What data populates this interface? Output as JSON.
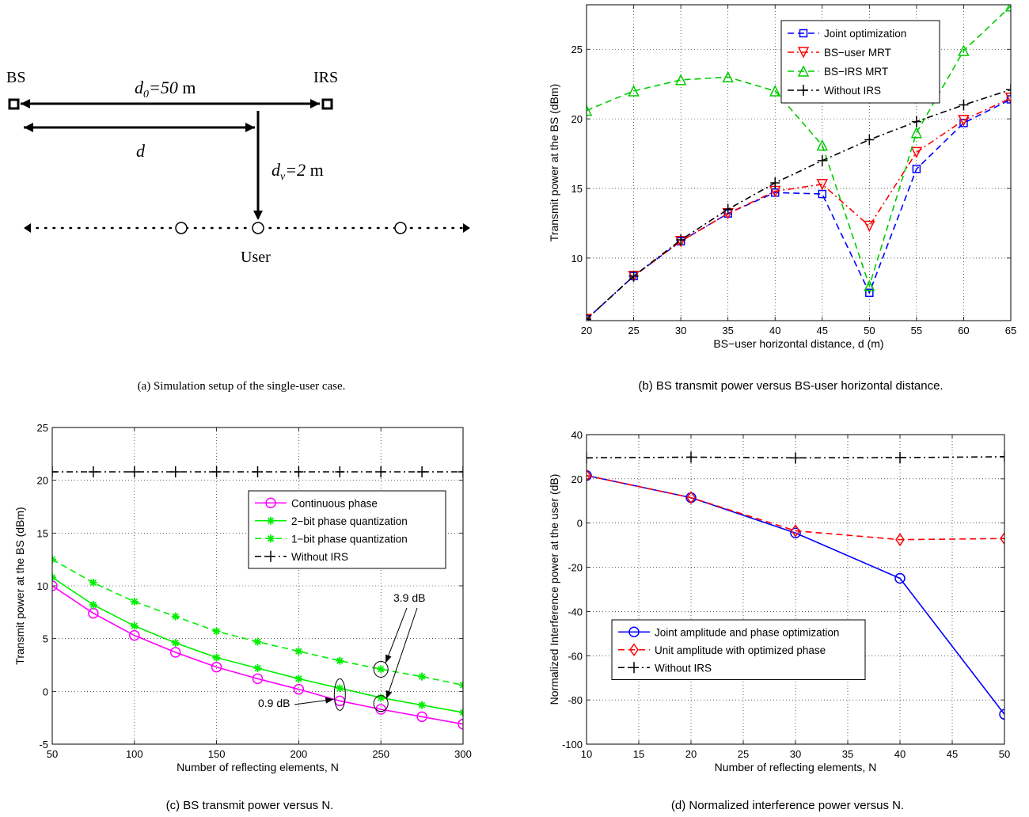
{
  "setup": {
    "bs_label": "BS",
    "irs_label": "IRS",
    "d0_label": "d",
    "d0_sub": "0",
    "d0_value": "=50",
    "d0_unit": " m",
    "d_label": "d",
    "dv_label": "d",
    "dv_sub": "v",
    "dv_value": "=2",
    "dv_unit": " m",
    "user_label": "User",
    "caption": "(a) Simulation setup of the single-user case."
  },
  "chart_data": [
    {
      "id": "b",
      "type": "line",
      "caption": "(b) BS transmit power versus BS-user horizontal distance.",
      "xlabel": "BS−user horizontal distance, d (m)",
      "ylabel": "Transmit power at the BS (dBm)",
      "xlim": [
        20,
        65
      ],
      "ylim": [
        5.5,
        28.2
      ],
      "xticks": [
        20,
        25,
        30,
        35,
        40,
        45,
        50,
        55,
        60,
        65
      ],
      "yticks": [
        10,
        15,
        20,
        25
      ],
      "grid": true,
      "legend": "top-right",
      "x": [
        20,
        25,
        30,
        35,
        40,
        45,
        50,
        55,
        60,
        65
      ],
      "series": [
        {
          "name": "Joint optimization",
          "color": "#0000ff",
          "dash": "8,5",
          "marker": "square",
          "values": [
            5.6,
            8.7,
            11.2,
            13.2,
            14.7,
            14.6,
            7.5,
            16.4,
            19.7,
            21.4
          ]
        },
        {
          "name": "BS−user MRT",
          "color": "#ff0000",
          "dash": "8,4,2,4",
          "marker": "tri-down",
          "values": [
            5.6,
            8.7,
            11.2,
            13.2,
            14.8,
            15.3,
            12.3,
            17.6,
            19.9,
            21.5
          ]
        },
        {
          "name": "BS−IRS MRT",
          "color": "#00cc00",
          "dash": "8,5",
          "marker": "tri-up",
          "values": [
            20.6,
            22.0,
            22.8,
            23.0,
            22.0,
            18.1,
            8.0,
            19.0,
            24.9,
            28.1
          ]
        },
        {
          "name": "Without IRS",
          "color": "#000000",
          "dash": "8,4,2,4",
          "marker": "plus",
          "values": [
            5.6,
            8.7,
            11.3,
            13.5,
            15.4,
            17.0,
            18.5,
            19.8,
            21.0,
            22.1
          ]
        }
      ]
    },
    {
      "id": "c",
      "type": "line",
      "caption": "(c) BS transmit power versus N.",
      "xlabel": "Number of reflecting elements, N",
      "ylabel": "Transmit power at the BS (dBm)",
      "xlim": [
        50,
        300
      ],
      "ylim": [
        -5,
        25
      ],
      "xticks": [
        50,
        100,
        150,
        200,
        250,
        300
      ],
      "yticks": [
        -5,
        0,
        5,
        10,
        15,
        20,
        25
      ],
      "grid": true,
      "legend": "middle-right",
      "x": [
        50,
        75,
        100,
        125,
        150,
        175,
        200,
        225,
        250,
        275,
        300
      ],
      "series": [
        {
          "name": "Continuous phase",
          "color": "#ff00ff",
          "dash": "",
          "marker": "circle",
          "values": [
            10.0,
            7.4,
            5.3,
            3.7,
            2.3,
            1.2,
            0.2,
            -0.9,
            -1.7,
            -2.4,
            -3.1
          ]
        },
        {
          "name": "2−bit phase quantization",
          "color": "#00ee00",
          "dash": "",
          "marker": "star",
          "values": [
            10.8,
            8.2,
            6.2,
            4.6,
            3.2,
            2.2,
            1.2,
            0.3,
            -0.6,
            -1.3,
            -2.0
          ]
        },
        {
          "name": "1−bit phase quantization",
          "color": "#00ee00",
          "dash": "8,5",
          "marker": "star",
          "values": [
            12.5,
            10.3,
            8.5,
            7.1,
            5.7,
            4.7,
            3.8,
            2.9,
            2.1,
            1.4,
            0.6
          ]
        },
        {
          "name": "Without IRS",
          "color": "#000000",
          "dash": "8,4,2,4",
          "marker": "plus",
          "values": [
            20.8,
            20.8,
            20.8,
            20.8,
            20.8,
            20.8,
            20.8,
            20.8,
            20.8,
            20.8,
            20.8
          ]
        }
      ],
      "annotations": [
        "3.9 dB",
        "0.9 dB"
      ]
    },
    {
      "id": "d",
      "type": "line",
      "caption": "(d) Normalized interference power versus N.",
      "xlabel": "Number of reflecting elements, N",
      "ylabel": "Normalized Interference power at the user (dB)",
      "xlim": [
        10,
        50
      ],
      "ylim": [
        -100,
        40
      ],
      "xticks": [
        10,
        15,
        20,
        25,
        30,
        35,
        40,
        45,
        50
      ],
      "yticks": [
        -100,
        -80,
        -60,
        -40,
        -20,
        0,
        20,
        40
      ],
      "grid": true,
      "legend": "bottom-left",
      "x": [
        10,
        20,
        30,
        40,
        50
      ],
      "series": [
        {
          "name": "Joint amplitude and phase optimization",
          "color": "#0000ff",
          "dash": "",
          "marker": "circle",
          "values": [
            21.5,
            11.5,
            -4.5,
            -25.0,
            -86.5
          ]
        },
        {
          "name": "Unit amplitude with optimized phase",
          "color": "#ff0000",
          "dash": "8,5",
          "marker": "diamond",
          "values": [
            21.5,
            11.5,
            -3.5,
            -7.5,
            -7.0
          ]
        },
        {
          "name": "Without IRS",
          "color": "#000000",
          "dash": "8,4,2,4",
          "marker": "plus",
          "values": [
            29.5,
            29.8,
            29.5,
            29.6,
            30.0
          ]
        }
      ]
    }
  ]
}
